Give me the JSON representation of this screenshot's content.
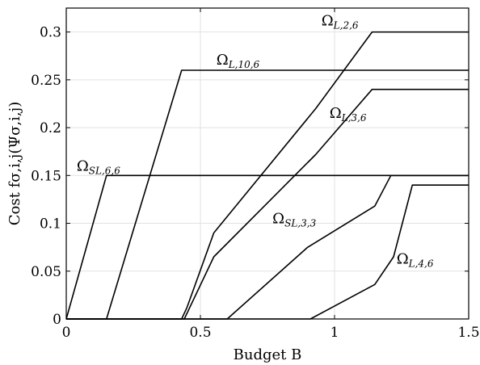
{
  "chart_data": {
    "type": "line",
    "xlabel": "Budget B",
    "ylabel": "Cost fσ,i,j(Ψσ,i,j)",
    "xlim": [
      0,
      1.5
    ],
    "ylim": [
      0,
      0.325
    ],
    "x_ticks": [
      {
        "value": 0,
        "label": "0"
      },
      {
        "value": 0.5,
        "label": "0.5"
      },
      {
        "value": 1,
        "label": "1"
      },
      {
        "value": 1.5,
        "label": "1.5"
      }
    ],
    "y_ticks": [
      {
        "value": 0,
        "label": "0"
      },
      {
        "value": 0.05,
        "label": "0.05"
      },
      {
        "value": 0.1,
        "label": "0.1"
      },
      {
        "value": 0.15,
        "label": "0.15"
      },
      {
        "value": 0.2,
        "label": "0.2"
      },
      {
        "value": 0.25,
        "label": "0.25"
      },
      {
        "value": 0.3,
        "label": "0.3"
      }
    ],
    "grid": true,
    "color": "#000000",
    "series": [
      {
        "name": "Ω_{SL,6,6}",
        "name_main": "Ω",
        "name_sub": "SL,6,6",
        "x": [
          0,
          0.15,
          1.5
        ],
        "y": [
          0,
          0.15,
          0.15
        ],
        "label_at": [
          0.12,
          0.155
        ]
      },
      {
        "name": "Ω_{L,10,6}",
        "name_main": "Ω",
        "name_sub": "L,10,6",
        "x": [
          0,
          0.15,
          0.43,
          1.5
        ],
        "y": [
          0,
          0,
          0.26,
          0.26
        ],
        "label_at": [
          0.64,
          0.266
        ]
      },
      {
        "name": "Ω_{L,2,6}",
        "name_main": "Ω",
        "name_sub": "L,2,6",
        "x": [
          0,
          0.43,
          0.45,
          0.55,
          0.93,
          1.14,
          1.5
        ],
        "y": [
          0,
          0,
          0.012,
          0.09,
          0.22,
          0.3,
          0.3
        ],
        "label_at": [
          1.02,
          0.307
        ]
      },
      {
        "name": "Ω_{L,3,6}",
        "name_main": "Ω",
        "name_sub": "L,3,6",
        "x": [
          0,
          0.44,
          0.55,
          0.93,
          1.14,
          1.5
        ],
        "y": [
          0,
          0,
          0.065,
          0.172,
          0.24,
          0.24
        ],
        "label_at": [
          1.05,
          0.21
        ]
      },
      {
        "name": "Ω_{SL,3,3}",
        "name_main": "Ω",
        "name_sub": "SL,3,3",
        "x": [
          0,
          0.6,
          0.9,
          1.15,
          1.21,
          1.5
        ],
        "y": [
          0,
          0,
          0.075,
          0.118,
          0.15,
          0.15
        ],
        "label_at": [
          0.85,
          0.1
        ]
      },
      {
        "name": "Ω_{L,4,6}",
        "name_main": "Ω",
        "name_sub": "L,4,6",
        "x": [
          0,
          0.91,
          1.15,
          1.22,
          1.29,
          1.5
        ],
        "y": [
          0,
          0,
          0.036,
          0.065,
          0.14,
          0.14
        ],
        "label_at": [
          1.3,
          0.058
        ]
      }
    ]
  }
}
